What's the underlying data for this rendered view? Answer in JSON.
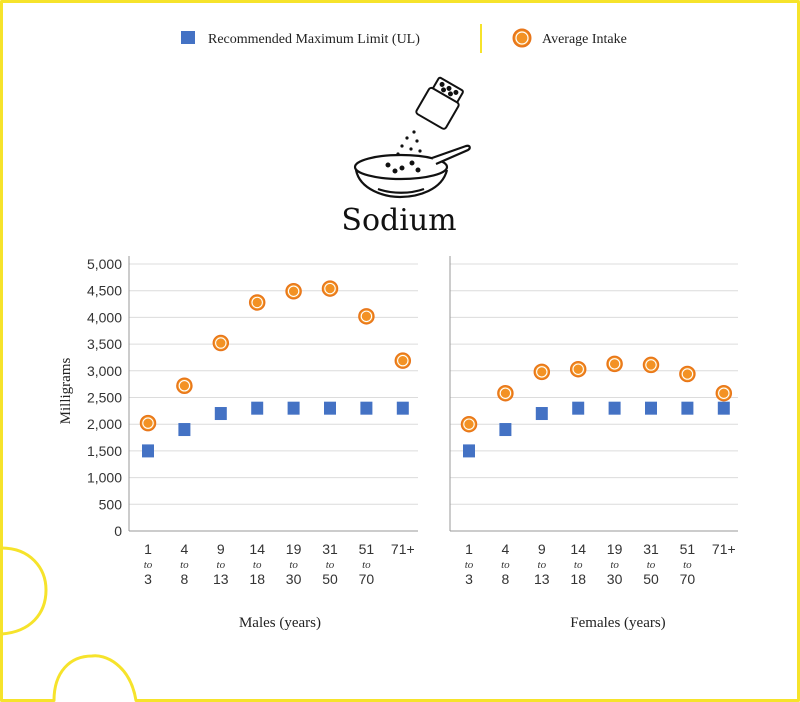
{
  "chart_data": {
    "type": "scatter",
    "title": "Sodium",
    "ylabel": "Milligrams",
    "ylim": [
      0,
      5000
    ],
    "yticks": [
      0,
      500,
      1000,
      1500,
      2000,
      2500,
      3000,
      3500,
      4000,
      4500,
      5000
    ],
    "ytick_labels": [
      "0",
      "500",
      "1,000",
      "1,500",
      "2,000",
      "2,500",
      "3,000",
      "3,500",
      "4,000",
      "4,500",
      "5,000"
    ],
    "grid": true,
    "legend_position": "top",
    "legend": [
      {
        "name": "Recommended Maximum Limit (UL)",
        "marker": "square",
        "color": "#4472c4"
      },
      {
        "name": "Average Intake",
        "marker": "circle",
        "color": "#f39224"
      }
    ],
    "categories": [
      {
        "from": "1",
        "sep": "to",
        "to": "3"
      },
      {
        "from": "4",
        "sep": "to",
        "to": "8"
      },
      {
        "from": "9",
        "sep": "to",
        "to": "13"
      },
      {
        "from": "14",
        "sep": "to",
        "to": "18"
      },
      {
        "from": "19",
        "sep": "to",
        "to": "30"
      },
      {
        "from": "31",
        "sep": "to",
        "to": "50"
      },
      {
        "from": "51",
        "sep": "to",
        "to": "70"
      },
      {
        "from": "71+",
        "sep": "",
        "to": ""
      }
    ],
    "panels": [
      {
        "xlabel": "Males (years)",
        "series": [
          {
            "name": "Recommended Maximum Limit (UL)",
            "values": [
              1500,
              1900,
              2200,
              2300,
              2300,
              2300,
              2300,
              2300
            ]
          },
          {
            "name": "Average Intake",
            "values": [
              2020,
              2720,
              3520,
              4280,
              4490,
              4540,
              4020,
              3190
            ]
          }
        ]
      },
      {
        "xlabel": "Females (years)",
        "series": [
          {
            "name": "Recommended Maximum Limit (UL)",
            "values": [
              1500,
              1900,
              2200,
              2300,
              2300,
              2300,
              2300,
              2300
            ]
          },
          {
            "name": "Average Intake",
            "values": [
              2000,
              2580,
              2980,
              3030,
              3130,
              3110,
              2940,
              2580
            ]
          }
        ]
      }
    ]
  },
  "colors": {
    "frame": "#f6e32b",
    "ul_marker": "#4472c4",
    "intake_fill": "#f39224",
    "intake_ring": "#e8761a",
    "grid": "#dcdcdc",
    "axis": "#999999"
  },
  "icons": [
    "salt-shaker-icon",
    "soup-bowl-icon"
  ]
}
